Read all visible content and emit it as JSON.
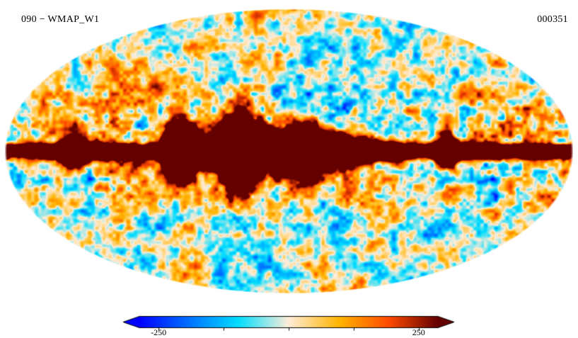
{
  "figure": {
    "left_label": "090 − WMAP_W1",
    "right_label": "000351"
  },
  "chart_data": {
    "type": "heatmap",
    "projection": "mollweide",
    "title": "090 − WMAP_W1",
    "frame_number": "000351",
    "description": "Full-sky CMB temperature map (WMAP W1 band, 90 GHz) in Mollweide projection; mottled blue/cream/orange fluctuations over the sky with a saturated dark-red galactic plane band along the equator.",
    "colorbar": {
      "orientation": "horizontal",
      "arrow_ends": true,
      "min_label": "-250",
      "max_label": "250",
      "tick_values": [
        -250,
        -125,
        0,
        125,
        250
      ],
      "range": [
        -287,
        287
      ]
    },
    "colormap": {
      "name": "planck-cmb",
      "stops": [
        {
          "pos": 0.0,
          "color": "#0000ff"
        },
        {
          "pos": 0.165,
          "color": "#0070ff"
        },
        {
          "pos": 0.33,
          "color": "#00ddff"
        },
        {
          "pos": 0.5,
          "color": "#ffedd9"
        },
        {
          "pos": 0.67,
          "color": "#ffb400"
        },
        {
          "pos": 0.835,
          "color": "#ff4b00"
        },
        {
          "pos": 1.0,
          "color": "#640000"
        }
      ]
    }
  }
}
